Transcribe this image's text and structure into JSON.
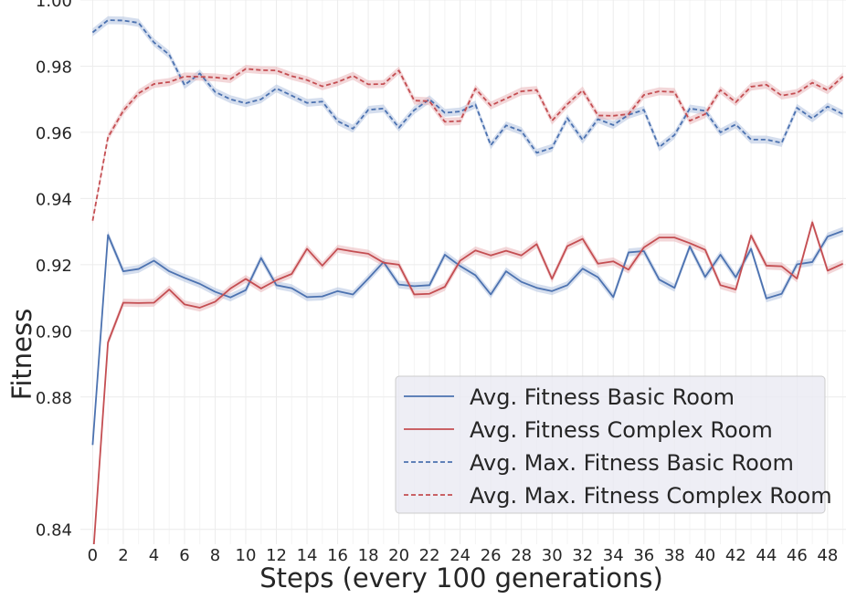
{
  "chart_data": {
    "type": "line",
    "xlabel": "Steps (every 100 generations)",
    "ylabel": "Fitness",
    "xlim": [
      -0.8,
      49.2
    ],
    "ylim": [
      0.8355,
      1.0
    ],
    "xticks": [
      0,
      2,
      4,
      6,
      8,
      10,
      12,
      14,
      16,
      18,
      20,
      22,
      24,
      26,
      28,
      30,
      32,
      34,
      36,
      38,
      40,
      42,
      44,
      46,
      48
    ],
    "yticks": [
      0.84,
      0.88,
      0.9,
      0.92,
      0.94,
      0.96,
      0.98,
      1.0
    ],
    "ytick_labels": [
      "0.84",
      "0.88",
      "0.90",
      "0.92",
      "0.94",
      "0.96",
      "0.98",
      "1.00"
    ],
    "grid": true,
    "legend_position": "lower-right",
    "colors": {
      "blue": "#4c72b0",
      "red": "#c44e52",
      "blue_band": "#b3c3e0",
      "red_band": "#eab7b9"
    },
    "series": [
      {
        "name": "Avg. Fitness Basic Room",
        "color": "#4c72b0",
        "style": "solid",
        "band": 0.0012,
        "x": [
          0,
          1,
          2,
          3,
          4,
          5,
          6,
          7,
          8,
          9,
          10,
          11,
          12,
          13,
          14,
          15,
          16,
          17,
          18,
          19,
          20,
          21,
          22,
          23,
          24,
          25,
          26,
          27,
          28,
          29,
          30,
          31,
          32,
          33,
          34,
          35,
          36,
          37,
          38,
          39,
          40,
          41,
          42,
          43,
          44,
          45,
          46,
          47,
          48,
          49
        ],
        "values": [
          0.8655,
          0.929,
          0.918,
          0.9187,
          0.9212,
          0.918,
          0.916,
          0.9142,
          0.9118,
          0.9101,
          0.9123,
          0.922,
          0.9138,
          0.9129,
          0.9102,
          0.9104,
          0.912,
          0.911,
          0.9158,
          0.9208,
          0.914,
          0.9135,
          0.9138,
          0.923,
          0.9196,
          0.9168,
          0.911,
          0.918,
          0.9148,
          0.913,
          0.912,
          0.9138,
          0.9188,
          0.9162,
          0.9102,
          0.9237,
          0.9241,
          0.9155,
          0.913,
          0.9255,
          0.9163,
          0.923,
          0.9162,
          0.9248,
          0.9098,
          0.9112,
          0.9201,
          0.9208,
          0.9285,
          0.9302
        ]
      },
      {
        "name": "Avg. Fitness Complex Room",
        "color": "#c44e52",
        "style": "solid",
        "band": 0.0012,
        "x": [
          0,
          1,
          2,
          3,
          4,
          5,
          6,
          7,
          8,
          9,
          10,
          11,
          12,
          13,
          14,
          15,
          16,
          17,
          18,
          19,
          20,
          21,
          22,
          23,
          24,
          25,
          26,
          27,
          28,
          29,
          30,
          31,
          32,
          33,
          34,
          35,
          36,
          37,
          38,
          39,
          40,
          41,
          42,
          43,
          44,
          45,
          46,
          47,
          48,
          49
        ],
        "values": [
          0.83,
          0.8965,
          0.9085,
          0.9084,
          0.9085,
          0.9125,
          0.908,
          0.907,
          0.9088,
          0.9128,
          0.9157,
          0.9128,
          0.9153,
          0.9172,
          0.9248,
          0.9197,
          0.9248,
          0.924,
          0.9233,
          0.9206,
          0.92,
          0.911,
          0.9112,
          0.9133,
          0.9212,
          0.9243,
          0.9228,
          0.9242,
          0.9228,
          0.9262,
          0.9157,
          0.9256,
          0.9278,
          0.9203,
          0.921,
          0.9185,
          0.9252,
          0.9282,
          0.9282,
          0.9265,
          0.9245,
          0.9138,
          0.9125,
          0.9288,
          0.9197,
          0.9195,
          0.9158,
          0.9328,
          0.9182,
          0.9203
        ]
      },
      {
        "name": "Avg. Max. Fitness Basic Room",
        "color": "#4c72b0",
        "style": "dashed",
        "band": 0.0012,
        "x": [
          0,
          1,
          2,
          3,
          4,
          5,
          6,
          7,
          8,
          9,
          10,
          11,
          12,
          13,
          14,
          15,
          16,
          17,
          18,
          19,
          20,
          21,
          22,
          23,
          24,
          25,
          26,
          27,
          28,
          29,
          30,
          31,
          32,
          33,
          34,
          35,
          36,
          37,
          38,
          39,
          40,
          41,
          42,
          43,
          44,
          45,
          46,
          47,
          48,
          49
        ],
        "values": [
          0.9902,
          0.9939,
          0.9938,
          0.9931,
          0.9872,
          0.9835,
          0.9743,
          0.9778,
          0.9722,
          0.97,
          0.9688,
          0.97,
          0.9733,
          0.9711,
          0.9689,
          0.9693,
          0.9634,
          0.9611,
          0.9668,
          0.9672,
          0.9614,
          0.9667,
          0.97,
          0.9659,
          0.9663,
          0.9684,
          0.9561,
          0.9621,
          0.9604,
          0.9538,
          0.9553,
          0.9643,
          0.9577,
          0.964,
          0.9622,
          0.9653,
          0.9668,
          0.9555,
          0.9592,
          0.9672,
          0.9665,
          0.96,
          0.9624,
          0.9578,
          0.9578,
          0.9568,
          0.9674,
          0.9642,
          0.9678,
          0.9655
        ]
      },
      {
        "name": "Avg. Max. Fitness Complex Room",
        "color": "#c44e52",
        "style": "dashed",
        "band": 0.0012,
        "x": [
          0,
          1,
          2,
          3,
          4,
          5,
          6,
          7,
          8,
          9,
          10,
          11,
          12,
          13,
          14,
          15,
          16,
          17,
          18,
          19,
          20,
          21,
          22,
          23,
          24,
          25,
          26,
          27,
          28,
          29,
          30,
          31,
          32,
          33,
          34,
          35,
          36,
          37,
          38,
          39,
          40,
          41,
          42,
          43,
          44,
          45,
          46,
          47,
          48,
          49
        ],
        "values": [
          0.9333,
          0.9585,
          0.9665,
          0.9718,
          0.9746,
          0.9752,
          0.9769,
          0.9768,
          0.9766,
          0.9761,
          0.9792,
          0.9788,
          0.9787,
          0.977,
          0.9758,
          0.9739,
          0.9752,
          0.9771,
          0.9745,
          0.9746,
          0.9787,
          0.9696,
          0.9694,
          0.9632,
          0.9634,
          0.9732,
          0.9681,
          0.9702,
          0.9724,
          0.9728,
          0.9635,
          0.9685,
          0.9727,
          0.9651,
          0.965,
          0.9655,
          0.9713,
          0.9724,
          0.9722,
          0.9635,
          0.9655,
          0.9728,
          0.9691,
          0.9738,
          0.9744,
          0.9711,
          0.9719,
          0.975,
          0.9727,
          0.9769
        ]
      }
    ]
  }
}
